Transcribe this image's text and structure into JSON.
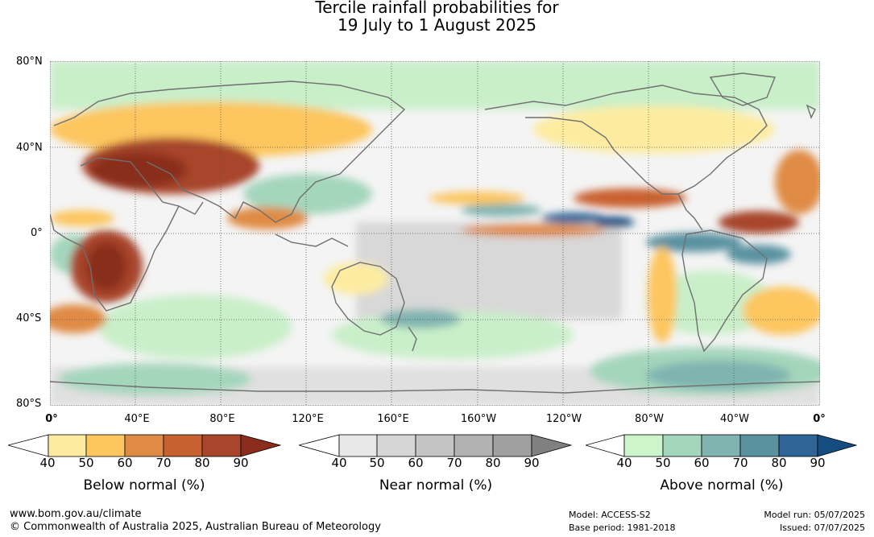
{
  "title": {
    "line1": "Tercile rainfall probabilities for",
    "line2": "19 July to 1 August 2025"
  },
  "map": {
    "lat_labels": [
      "80°N",
      "40°N",
      "0°",
      "40°S",
      "80°S"
    ],
    "lon_labels": [
      "0°",
      "40°E",
      "80°E",
      "120°E",
      "160°E",
      "160°W",
      "120°W",
      "80°W",
      "40°W",
      "0°"
    ],
    "gridlines": "dotted"
  },
  "legends": [
    {
      "name": "Below normal (%)",
      "ticks": [
        "40",
        "50",
        "60",
        "70",
        "80",
        "90"
      ],
      "colors": [
        "#ffffff",
        "#fdeca0",
        "#fdc65f",
        "#e08b45",
        "#c9602f",
        "#a8452a",
        "#8a2d1c"
      ]
    },
    {
      "name": "Near normal (%)",
      "ticks": [
        "40",
        "50",
        "60",
        "70",
        "80",
        "90"
      ],
      "colors": [
        "#ffffff",
        "#e8e8e8",
        "#d6d6d6",
        "#c4c4c4",
        "#b2b2b2",
        "#a0a0a0",
        "#808080"
      ]
    },
    {
      "name": "Above normal (%)",
      "ticks": [
        "40",
        "50",
        "60",
        "70",
        "80",
        "90"
      ],
      "colors": [
        "#ffffff",
        "#ccf5cc",
        "#a4d6bc",
        "#80b4b0",
        "#5a92a0",
        "#2f6496",
        "#154d80"
      ]
    }
  ],
  "footer": {
    "url": "www.bom.gov.au/climate",
    "copyright": "© Commonwealth of Australia 2025, Australian Bureau of Meteorology",
    "model": "Model: ACCESS-S2",
    "base_period": "Base period: 1981-2018",
    "model_run": "Model run: 05/07/2025",
    "issued": "Issued: 07/07/2025"
  }
}
